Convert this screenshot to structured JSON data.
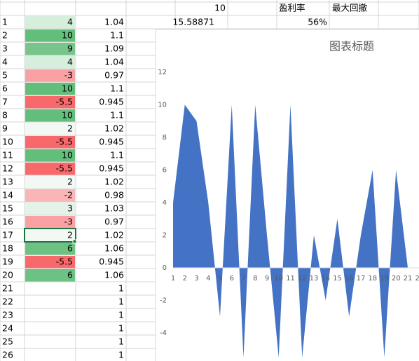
{
  "sheet": {
    "top_row": {
      "d": 10,
      "f": "盈利率",
      "g": "最大回撤"
    },
    "row1_extra": {
      "d": 15.58871,
      "f": "56%"
    },
    "rows": [
      {
        "n": 1,
        "a": 4,
        "b": 1.04,
        "fill": "#d6eedc"
      },
      {
        "n": 2,
        "a": 10,
        "b": 1.1,
        "fill": "#63be7b"
      },
      {
        "n": 3,
        "a": 9,
        "b": 1.09,
        "fill": "#77c58a"
      },
      {
        "n": 4,
        "a": 4,
        "b": 1.04,
        "fill": "#d6eedc"
      },
      {
        "n": 5,
        "a": -3,
        "b": 0.97,
        "fill": "#f9a1a3"
      },
      {
        "n": 6,
        "a": 10,
        "b": 1.1,
        "fill": "#63be7b"
      },
      {
        "n": 7,
        "a": -5.5,
        "b": 0.945,
        "fill": "#f8696b"
      },
      {
        "n": 8,
        "a": 10,
        "b": 1.1,
        "fill": "#63be7b"
      },
      {
        "n": 9,
        "a": 2,
        "b": 1.02,
        "fill": "#f2f9f4"
      },
      {
        "n": 10,
        "a": -5.5,
        "b": 0.945,
        "fill": "#f8696b"
      },
      {
        "n": 11,
        "a": 10,
        "b": 1.1,
        "fill": "#63be7b"
      },
      {
        "n": 12,
        "a": -5.5,
        "b": 0.945,
        "fill": "#f8696b"
      },
      {
        "n": 13,
        "a": 2,
        "b": 1.02,
        "fill": "#f2f9f4"
      },
      {
        "n": 14,
        "a": -2,
        "b": 0.98,
        "fill": "#fab5b7"
      },
      {
        "n": 15,
        "a": 3,
        "b": 1.03,
        "fill": "#e3f3e7"
      },
      {
        "n": 16,
        "a": -3,
        "b": 0.97,
        "fill": "#f9a1a3"
      },
      {
        "n": 17,
        "a": 2,
        "b": 1.02,
        "fill": "#f2f9f4"
      },
      {
        "n": 18,
        "a": 6,
        "b": 1.06,
        "fill": "#6dc283"
      },
      {
        "n": 19,
        "a": -5.5,
        "b": 0.945,
        "fill": "#f8696b"
      },
      {
        "n": 20,
        "a": 6,
        "b": 1.06,
        "fill": "#6dc283"
      },
      {
        "n": 21,
        "b": 1
      },
      {
        "n": 22,
        "b": 1
      },
      {
        "n": 23,
        "b": 1
      },
      {
        "n": 24,
        "b": 1
      },
      {
        "n": 25,
        "b": 1
      },
      {
        "n": 26,
        "b": 1
      }
    ]
  },
  "chart": {
    "type": "area",
    "title": "图表标题",
    "categories": [
      1,
      2,
      3,
      4,
      5,
      6,
      7,
      8,
      9,
      10,
      11,
      12,
      13,
      14,
      15,
      16,
      17,
      18,
      19,
      20,
      21,
      22
    ],
    "values": [
      4,
      10,
      9,
      4,
      -3,
      10,
      -5.5,
      10,
      2,
      -5.5,
      10,
      -5.5,
      2,
      -2,
      3,
      -3,
      2,
      6,
      -5.5,
      6,
      0,
      0
    ],
    "color": "#4472c4",
    "ylim": [
      -6,
      12
    ],
    "yticks": [
      -4,
      -2,
      0,
      2,
      4,
      6,
      8,
      10,
      12
    ]
  }
}
